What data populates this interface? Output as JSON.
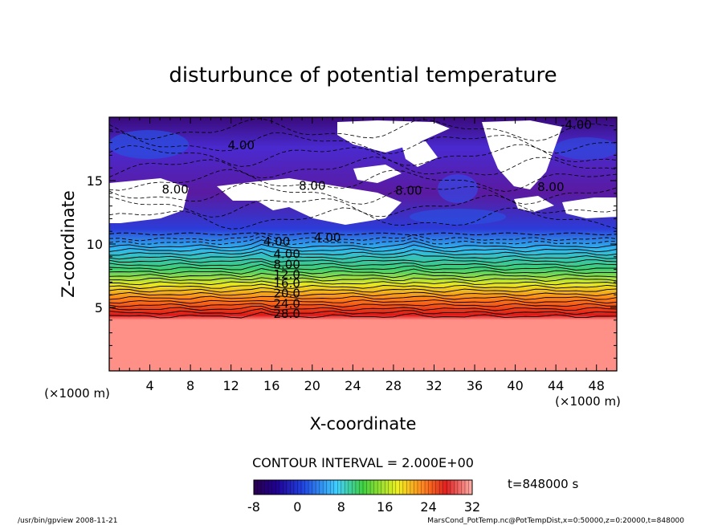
{
  "chart_data": {
    "type": "heatmap",
    "title": "disturbunce of potential temperature",
    "xlabel": "X-coordinate",
    "ylabel": "Z-coordinate",
    "x_unit_left": "(×1000 m)",
    "x_unit_right": "(×1000 m)",
    "xlim": [
      0,
      50
    ],
    "ylim": [
      0,
      20
    ],
    "xticks": [
      4,
      8,
      12,
      16,
      20,
      24,
      28,
      32,
      36,
      40,
      44,
      48
    ],
    "yticks": [
      5,
      10,
      15
    ],
    "contour_interval_text": "CONTOUR INTERVAL = 2.000E+00",
    "contour_labels": [
      {
        "text": "-4.00",
        "x": 46.0,
        "z": 19.4
      },
      {
        "text": "4.00",
        "x": 13.0,
        "z": 17.8
      },
      {
        "text": "8.00",
        "x": 6.5,
        "z": 14.3
      },
      {
        "text": "8.00",
        "x": 20.0,
        "z": 14.6
      },
      {
        "text": "8.00",
        "x": 29.5,
        "z": 14.2
      },
      {
        "text": "8.00",
        "x": 43.5,
        "z": 14.5
      },
      {
        "text": "4.00",
        "x": 21.5,
        "z": 10.5
      },
      {
        "text": "4.00",
        "x": 16.5,
        "z": 10.2
      },
      {
        "text": "4.00",
        "x": 17.5,
        "z": 9.2
      },
      {
        "text": "8.00",
        "x": 17.5,
        "z": 8.4
      },
      {
        "text": "12.0",
        "x": 17.5,
        "z": 7.6
      },
      {
        "text": "16.0",
        "x": 17.5,
        "z": 6.9
      },
      {
        "text": "20.0",
        "x": 17.5,
        "z": 6.1
      },
      {
        "text": "24.0",
        "x": 17.5,
        "z": 5.3
      },
      {
        "text": "28.0",
        "x": 17.5,
        "z": 4.5
      }
    ],
    "colorbar": {
      "min": -8,
      "max": 32,
      "tick_labels": [
        "-8",
        "0",
        "8",
        "16",
        "24",
        "32"
      ],
      "tick_values": [
        -8,
        0,
        8,
        16,
        24,
        32
      ]
    },
    "time_label": "t=848000 s",
    "footer_left": "/usr/bin/gpview  2008-11-21",
    "footer_right": "MarsCond_PotTemp.nc@PotTempDist,x=0:50000,z=0:20000,t=848000",
    "colors": {
      "deep_purple": "#2a004d",
      "purple": "#7a1fb0",
      "blue": "#2030e0",
      "cyan": "#40d0ff",
      "green": "#40d040",
      "yellow": "#f0f020",
      "orange": "#ff8020",
      "red": "#e02020",
      "salmon": "#ff9088"
    }
  }
}
